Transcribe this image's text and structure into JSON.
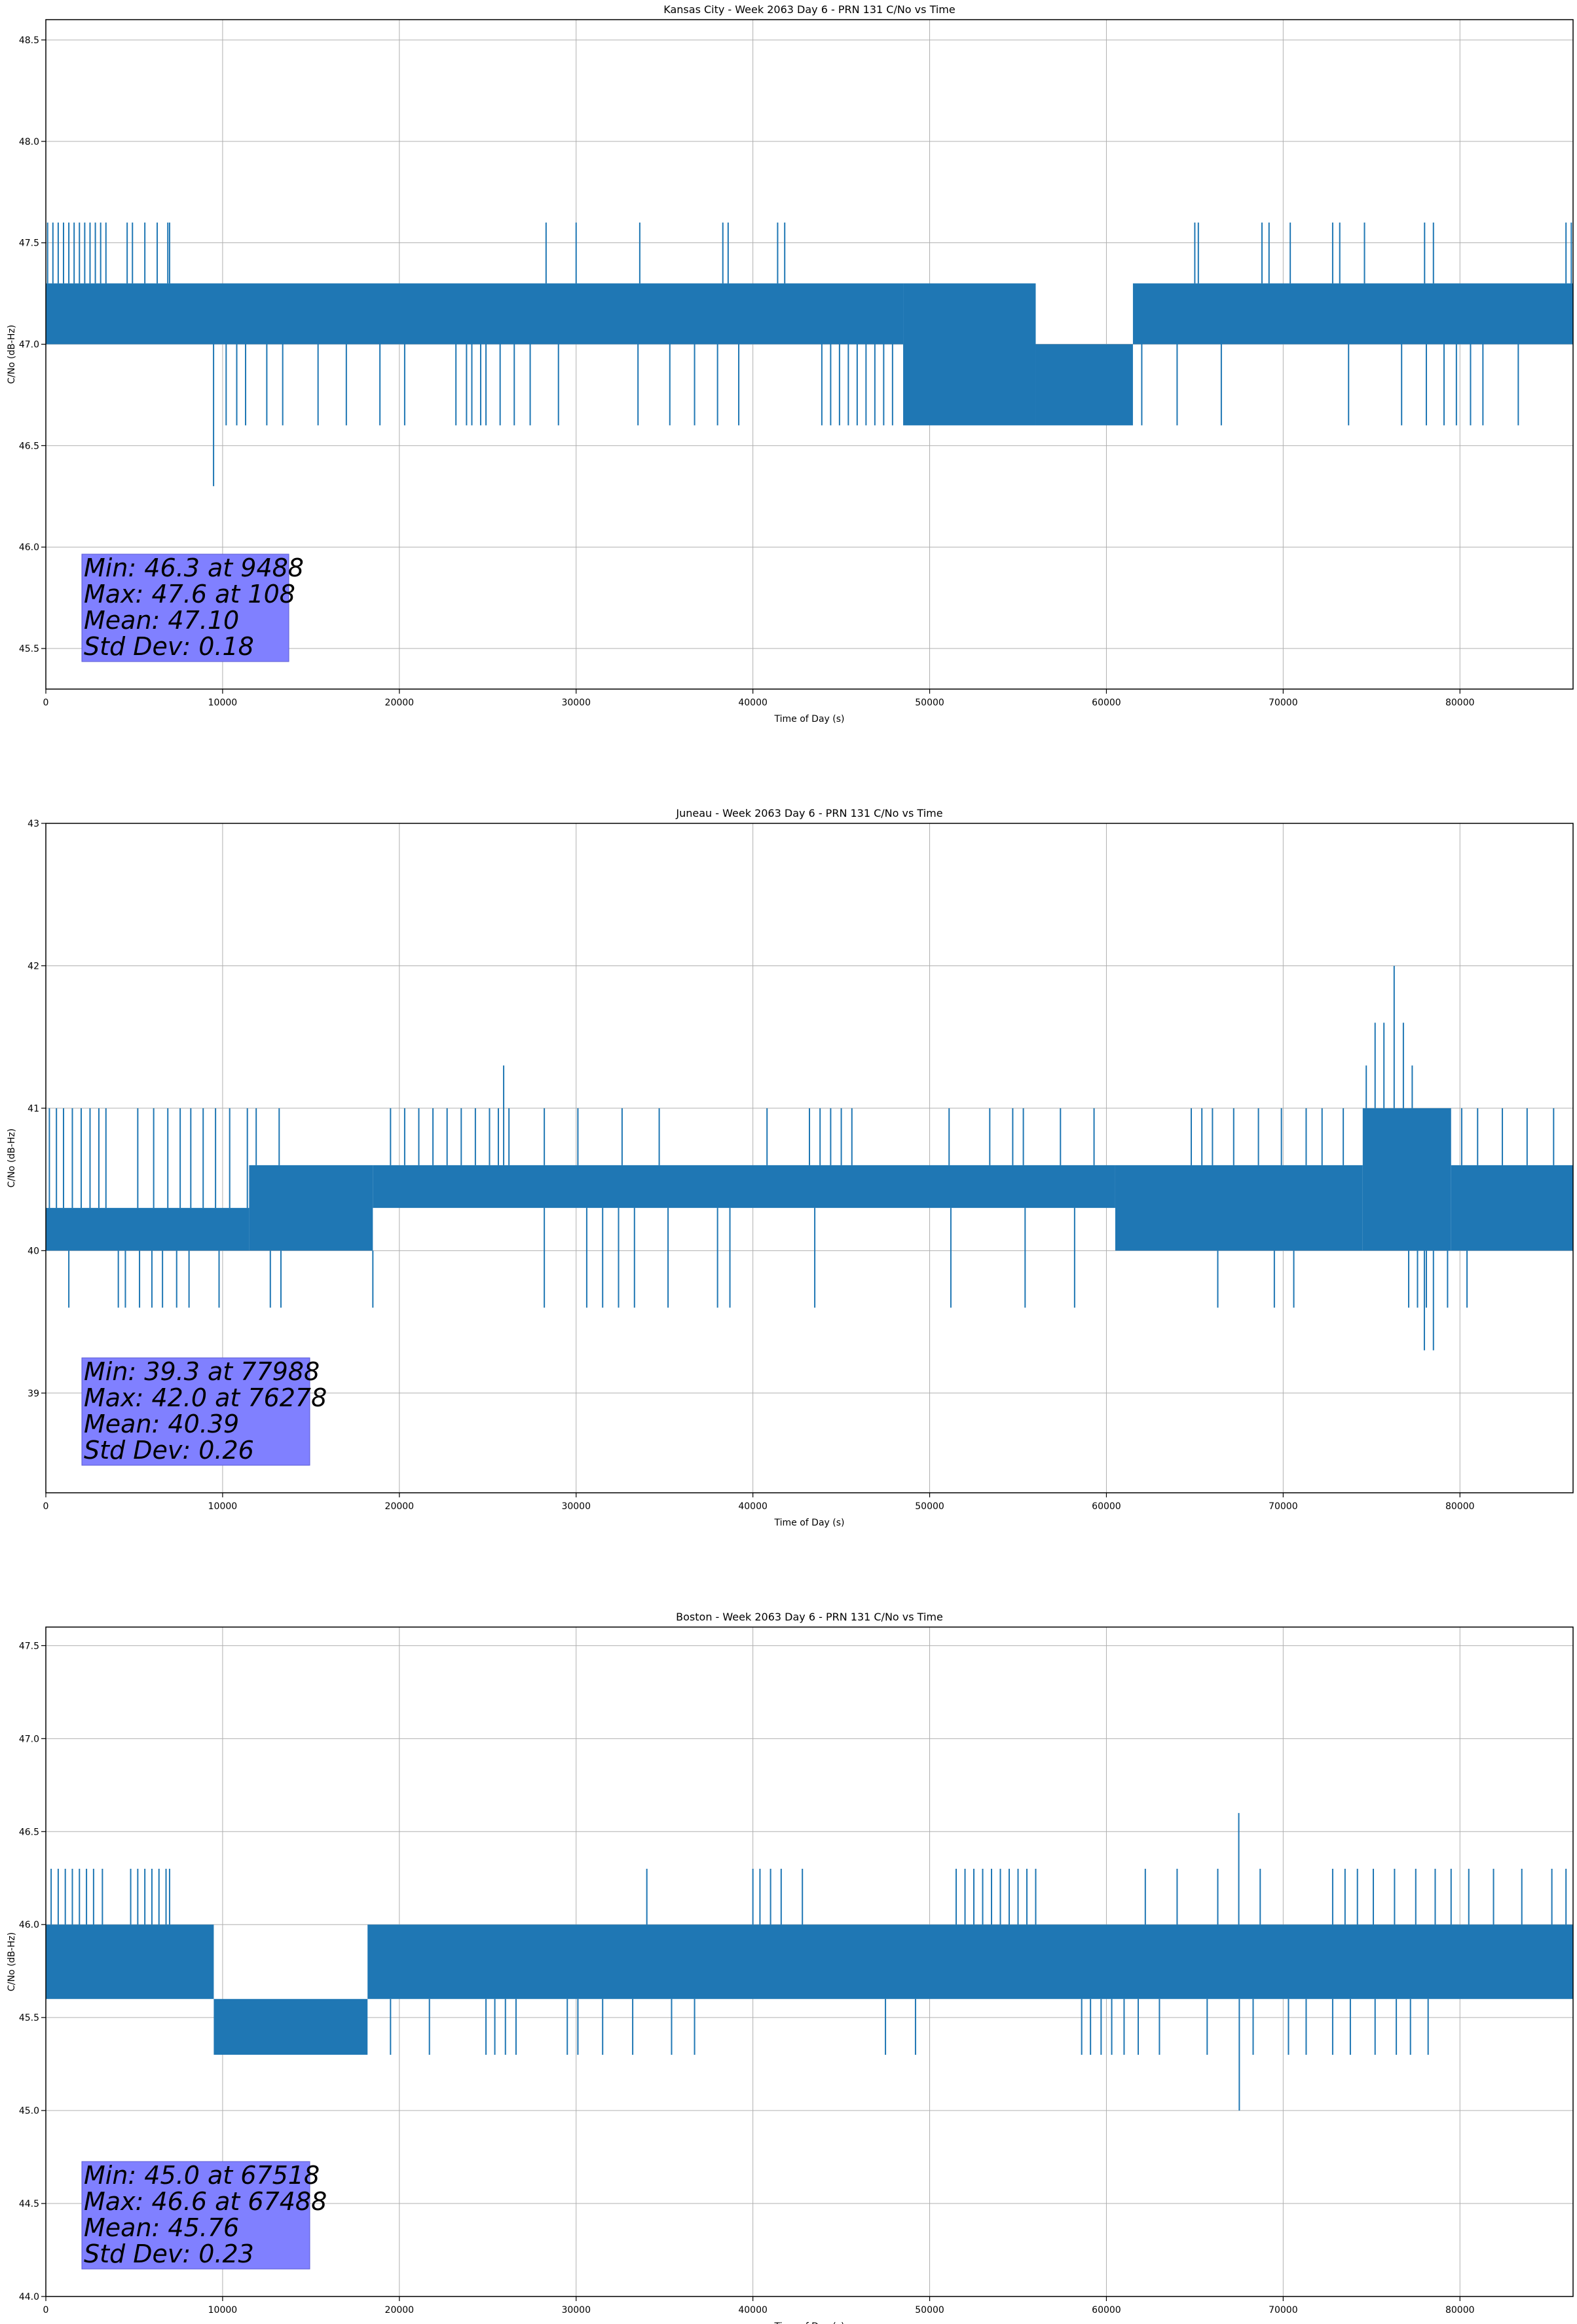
{
  "chart_data": [
    {
      "type": "line",
      "title": "Kansas City - Week 2063 Day 6 - PRN 131 C/No vs Time",
      "xlabel": "Time of Day (s)",
      "ylabel": "C/No (dB-Hz)",
      "xlim": [
        0,
        86400
      ],
      "ylim": [
        45.3,
        48.6
      ],
      "x_ticks": [
        0,
        10000,
        20000,
        30000,
        40000,
        50000,
        60000,
        70000,
        80000
      ],
      "x_tick_labels": [
        "0",
        "10000",
        "20000",
        "30000",
        "40000",
        "50000",
        "60000",
        "70000",
        "80000"
      ],
      "y_ticks": [
        45.5,
        46.0,
        46.5,
        47.0,
        47.5,
        48.0,
        48.5
      ],
      "y_tick_labels": [
        "45.5",
        "46.0",
        "46.5",
        "47.0",
        "47.5",
        "48.0",
        "48.5"
      ],
      "grid": true,
      "line_color": "#1f77b4",
      "series": [
        {
          "name": "C/No",
          "segments": [
            {
              "x0": 0,
              "x1": 48500,
              "low": 47.0,
              "high": 47.3
            },
            {
              "x0": 48500,
              "x1": 56000,
              "low": 46.6,
              "high": 47.3
            },
            {
              "x0": 56000,
              "x1": 61500,
              "low": 46.6,
              "high": 47.0
            },
            {
              "x0": 61500,
              "x1": 86400,
              "low": 47.0,
              "high": 47.3
            }
          ],
          "spikes_up": [
            100,
            400,
            700,
            1000,
            1300,
            1600,
            1900,
            2200,
            2500,
            2800,
            3100,
            3400,
            4600,
            4900,
            5600,
            6300,
            6900,
            7000,
            28300,
            30000,
            33600,
            38300,
            38600,
            41400,
            41800,
            65000,
            65200,
            68800,
            69200,
            70400,
            72800,
            73200,
            74600,
            78000,
            78500,
            86000,
            86300
          ],
          "spikes_up_value": 47.6,
          "spikes_down": [
            10200,
            10800,
            11300,
            12500,
            13400,
            15400,
            17000,
            18900,
            20300,
            23200,
            23800,
            24100,
            24600,
            24900,
            25700,
            26500,
            27400,
            29000,
            33500,
            35300,
            36700,
            38000,
            39200,
            43900,
            44400,
            44900,
            45400,
            45900,
            46400,
            46900,
            47400,
            47900,
            62000,
            64000,
            66500,
            73700,
            76700,
            78100,
            79100,
            79800,
            80600,
            81300,
            83300
          ],
          "spikes_down_value": 46.6,
          "extremes": [
            {
              "x": 9488,
              "y": 46.3
            }
          ]
        }
      ],
      "annotation": [
        "Min: 46.3 at 9488",
        "Max: 47.6 at 108",
        "Mean: 47.10",
        "Std Dev: 0.18"
      ]
    },
    {
      "type": "line",
      "title": "Juneau - Week 2063 Day 6 - PRN 131 C/No vs Time",
      "xlabel": "Time of Day (s)",
      "ylabel": "C/No (dB-Hz)",
      "xlim": [
        0,
        86400
      ],
      "ylim": [
        38.3,
        43.0
      ],
      "x_ticks": [
        0,
        10000,
        20000,
        30000,
        40000,
        50000,
        60000,
        70000,
        80000
      ],
      "x_tick_labels": [
        "0",
        "10000",
        "20000",
        "30000",
        "40000",
        "50000",
        "60000",
        "70000",
        "80000"
      ],
      "y_ticks": [
        39,
        40,
        41,
        42,
        43
      ],
      "y_tick_labels": [
        "39",
        "40",
        "41",
        "42",
        "43"
      ],
      "grid": true,
      "line_color": "#1f77b4",
      "series": [
        {
          "name": "C/No",
          "segments": [
            {
              "x0": 0,
              "x1": 11500,
              "low": 40.0,
              "high": 40.3
            },
            {
              "x0": 11500,
              "x1": 18500,
              "low": 40.0,
              "high": 40.6
            },
            {
              "x0": 18500,
              "x1": 60500,
              "low": 40.3,
              "high": 40.6
            },
            {
              "x0": 60500,
              "x1": 74500,
              "low": 40.0,
              "high": 40.6
            },
            {
              "x0": 74500,
              "x1": 79500,
              "low": 40.0,
              "high": 41.0
            },
            {
              "x0": 79500,
              "x1": 86400,
              "low": 40.0,
              "high": 40.6
            }
          ],
          "spikes_up": [
            200,
            600,
            1000,
            1500,
            2000,
            2500,
            3000,
            3400,
            5200,
            6100,
            6900,
            7600,
            8200,
            8900,
            9600,
            10400,
            11400,
            11900,
            13200,
            19500,
            20300,
            21100,
            21900,
            22700,
            23500,
            24300,
            25100,
            25600,
            26200,
            28200,
            30100,
            32600,
            34700,
            40800,
            43200,
            43800,
            44400,
            45000,
            45600,
            51100,
            53400,
            54700,
            55300,
            57400,
            59300,
            64800,
            65400,
            66000,
            67200,
            68600,
            69900,
            71300,
            72200,
            73400,
            80100,
            81000,
            82400,
            83800,
            85300
          ],
          "spikes_up_value": 41.0,
          "spikes_down": [
            1300,
            4100,
            4500,
            5300,
            6000,
            6600,
            7400,
            8100,
            9800,
            12700,
            13300,
            18500,
            28200,
            30600,
            31500,
            32400,
            33300,
            35200,
            38000,
            38700,
            43500,
            51200,
            55400,
            58200,
            66300,
            69500,
            70600,
            77100,
            77600,
            78100,
            79300,
            80400
          ],
          "spikes_down_value": 39.6,
          "extremes": [
            {
              "x": 25900,
              "y": 41.3
            },
            {
              "x": 74700,
              "y": 41.3
            },
            {
              "x": 75200,
              "y": 41.6
            },
            {
              "x": 75700,
              "y": 41.6
            },
            {
              "x": 76278,
              "y": 42.0
            },
            {
              "x": 76800,
              "y": 41.6
            },
            {
              "x": 77300,
              "y": 41.3
            },
            {
              "x": 77988,
              "y": 39.3
            },
            {
              "x": 78500,
              "y": 39.3
            }
          ]
        }
      ],
      "annotation": [
        "Min: 39.3 at 77988",
        "Max: 42.0 at 76278",
        "Mean: 40.39",
        "Std Dev: 0.26"
      ]
    },
    {
      "type": "line",
      "title": "Boston - Week 2063 Day 6 - PRN 131 C/No vs Time",
      "xlabel": "Time of Day (s)",
      "ylabel": "C/No (dB-Hz)",
      "xlim": [
        0,
        86400
      ],
      "ylim": [
        44.0,
        47.6
      ],
      "x_ticks": [
        0,
        10000,
        20000,
        30000,
        40000,
        50000,
        60000,
        70000,
        80000
      ],
      "x_tick_labels": [
        "0",
        "10000",
        "20000",
        "30000",
        "40000",
        "50000",
        "60000",
        "70000",
        "80000"
      ],
      "y_ticks": [
        44.0,
        44.5,
        45.0,
        45.5,
        46.0,
        46.5,
        47.0,
        47.5
      ],
      "y_tick_labels": [
        "44.0",
        "44.5",
        "45.0",
        "45.5",
        "46.0",
        "46.5",
        "47.0",
        "47.5"
      ],
      "grid": true,
      "line_color": "#1f77b4",
      "series": [
        {
          "name": "C/No",
          "segments": [
            {
              "x0": 0,
              "x1": 9500,
              "low": 45.6,
              "high": 46.0
            },
            {
              "x0": 9500,
              "x1": 18200,
              "low": 45.3,
              "high": 45.6
            },
            {
              "x0": 18200,
              "x1": 86400,
              "low": 45.6,
              "high": 46.0
            }
          ],
          "spikes_up": [
            300,
            700,
            1100,
            1500,
            1900,
            2300,
            2700,
            3200,
            4800,
            5200,
            5600,
            6000,
            6400,
            6800,
            7000,
            34000,
            40000,
            40400,
            41000,
            41600,
            42800,
            51500,
            52000,
            52500,
            53000,
            53500,
            54000,
            54500,
            55000,
            55500,
            56000,
            62200,
            64000,
            66300,
            68700,
            72800,
            73500,
            74200,
            75100,
            76300,
            77500,
            78600,
            79500,
            80500,
            81900,
            83500,
            85200,
            86000
          ],
          "spikes_up_value": 46.3,
          "spikes_down": [
            9600,
            10100,
            10600,
            11100,
            11600,
            12100,
            12600,
            13100,
            13600,
            14100,
            14600,
            15100,
            15600,
            16100,
            16600,
            17100,
            17600,
            18100,
            19500,
            21700,
            24900,
            25400,
            26000,
            26600,
            29500,
            30100,
            31500,
            33200,
            35400,
            36700,
            47500,
            49200,
            58600,
            59100,
            59700,
            60300,
            61000,
            61800,
            63000,
            65700,
            68300,
            70300,
            71300,
            72800,
            73800,
            75200,
            76400,
            77200,
            78200
          ],
          "spikes_down_value": 45.3,
          "extremes": [
            {
              "x": 67488,
              "y": 46.6
            },
            {
              "x": 67518,
              "y": 45.0
            }
          ]
        }
      ],
      "annotation": [
        "Min: 45.0 at 67518",
        "Max: 46.6 at 67488",
        "Mean: 45.76",
        "Std Dev: 0.23"
      ]
    }
  ]
}
